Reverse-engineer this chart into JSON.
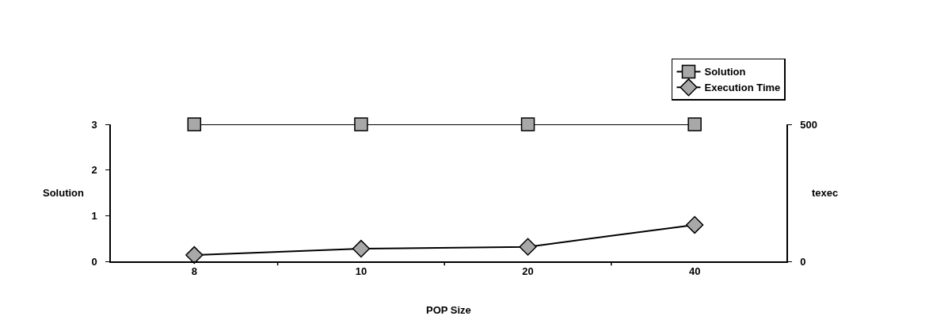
{
  "chart_data": {
    "type": "line",
    "xlabel": "POP Size",
    "ylabel": "Solution",
    "y2label": "texec",
    "categories": [
      "8",
      "10",
      "20",
      "40"
    ],
    "series": [
      {
        "name": "Solution",
        "color": "#000000",
        "marker": "square",
        "values": [
          3,
          3,
          3,
          3
        ]
      },
      {
        "name": "Execution Time",
        "color": "#000000",
        "marker": "diamond",
        "axis": "y2",
        "values": [
          23,
          46,
          53,
          133
        ]
      }
    ],
    "ylim": [
      0,
      3
    ],
    "yticks": [
      0,
      1,
      2,
      3
    ],
    "y2lim": [
      0,
      500
    ],
    "y2ticks": [
      0,
      500
    ],
    "grid": false,
    "legend": "top right",
    "line_style": "solid"
  }
}
